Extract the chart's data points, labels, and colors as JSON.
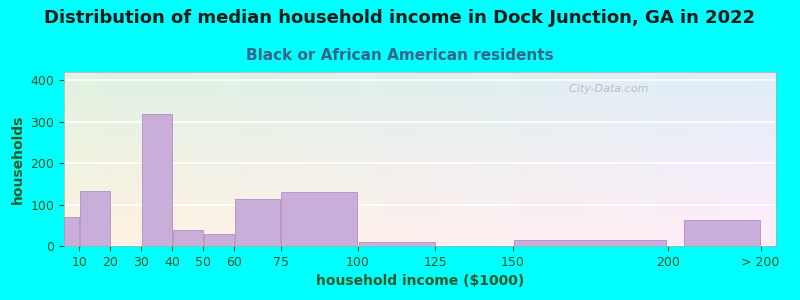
{
  "title": "Distribution of median household income in Dock Junction, GA in 2022",
  "subtitle": "Black or African American residents",
  "xlabel": "household income ($1000)",
  "ylabel": "households",
  "background_outer": "#00FFFF",
  "bar_color": "#c8aed8",
  "bar_edge_color": "#b090c0",
  "categories": [
    "10",
    "20",
    "30",
    "40",
    "50",
    "60",
    "75",
    "100",
    "125",
    "150",
    "200",
    "> 200"
  ],
  "values": [
    70,
    133,
    0,
    318,
    38,
    30,
    113,
    130,
    10,
    0,
    15,
    62
  ],
  "ylim": [
    0,
    420
  ],
  "yticks": [
    0,
    100,
    200,
    300,
    400
  ],
  "title_fontsize": 13,
  "subtitle_fontsize": 11,
  "axis_label_fontsize": 10,
  "tick_fontsize": 9,
  "watermark": "  City-Data.com",
  "title_color": "#1a1a1a",
  "subtitle_color": "#336688",
  "axis_label_color": "#2a5a2a",
  "tick_color": "#2a5a2a"
}
